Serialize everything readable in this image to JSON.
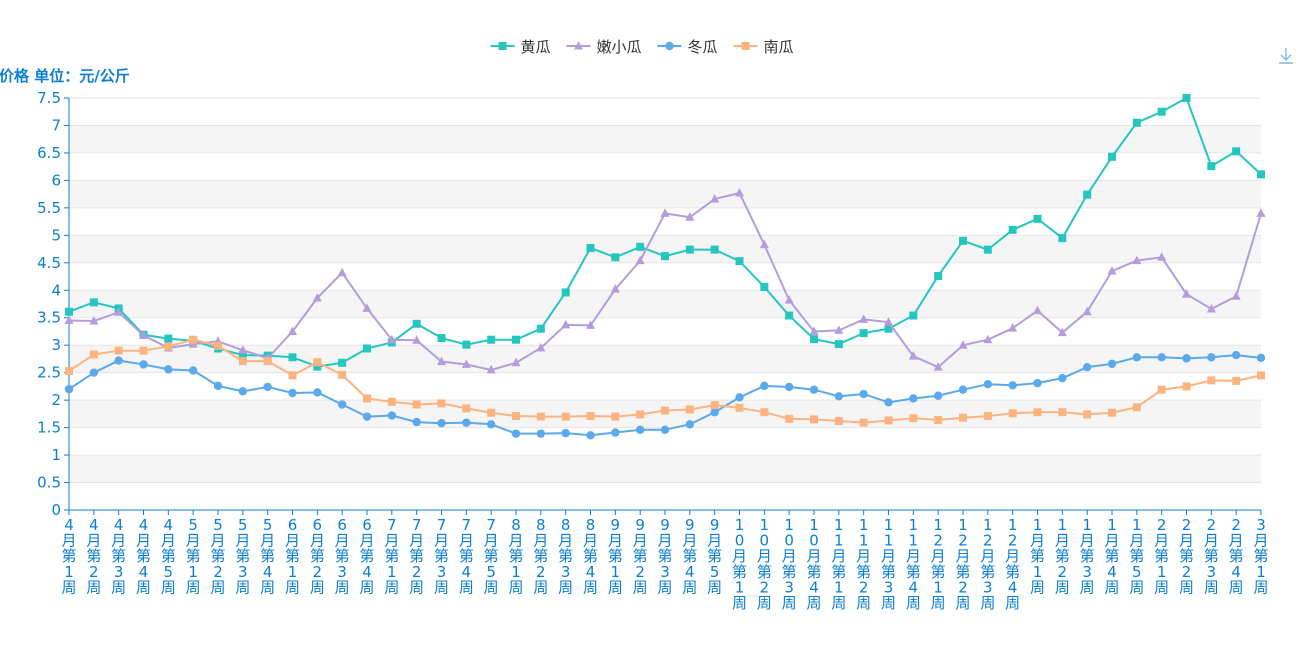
{
  "colors": {
    "axis": "#0b7fd1",
    "band": "#f5f5f5",
    "grid": "#e6e6e6",
    "series": [
      "#26c6c0",
      "#b39ddb",
      "#5aa9eb",
      "#fbb47f"
    ]
  },
  "icons": {
    "download": "download-icon"
  },
  "chart_data": {
    "type": "line",
    "title": "",
    "xlabel": "",
    "ylabel": "价格 单位：元/公斤",
    "ylim": [
      0,
      7.5
    ],
    "yticks": [
      "0",
      "0.5",
      "1",
      "1.5",
      "2",
      "2.5",
      "3",
      "3.5",
      "4",
      "4.5",
      "5",
      "5.5",
      "6",
      "6.5",
      "7",
      "7.5"
    ],
    "grid": true,
    "legend_position": "top-center",
    "categories": [
      "4月第1周",
      "4月第2周",
      "4月第3周",
      "4月第4周",
      "4月第5周",
      "5月第1周",
      "5月第2周",
      "5月第3周",
      "5月第4周",
      "6月第1周",
      "6月第2周",
      "6月第3周",
      "6月第4周",
      "7月第1周",
      "7月第2周",
      "7月第3周",
      "7月第4周",
      "7月第5周",
      "8月第1周",
      "8月第2周",
      "8月第3周",
      "8月第4周",
      "9月第1周",
      "9月第2周",
      "9月第3周",
      "9月第4周",
      "9月第5周",
      "10月第1周",
      "10月第2周",
      "10月第3周",
      "10月第4周",
      "11月第1周",
      "11月第2周",
      "11月第3周",
      "11月第4周",
      "12月第1周",
      "12月第2周",
      "12月第3周",
      "12月第4周",
      "1月第1周",
      "1月第2周",
      "1月第3周",
      "1月第4周",
      "1月第5周",
      "2月第1周",
      "2月第2周",
      "2月第3周",
      "2月第4周",
      "3月第1周"
    ],
    "series": [
      {
        "name": "黄瓜",
        "marker": "square",
        "values": [
          3.61,
          3.78,
          3.67,
          3.19,
          3.12,
          3.08,
          2.94,
          2.82,
          2.81,
          2.78,
          2.61,
          2.68,
          2.94,
          3.05,
          3.39,
          3.13,
          3.01,
          3.1,
          3.1,
          3.3,
          3.96,
          4.77,
          4.6,
          4.79,
          4.62,
          4.74,
          4.74,
          4.53,
          4.06,
          3.54,
          3.11,
          3.02,
          3.22,
          3.3,
          3.54,
          4.26,
          4.9,
          4.74,
          5.1,
          5.3,
          4.95,
          5.74,
          6.43,
          7.05,
          7.25,
          7.5,
          6.26,
          6.53,
          6.11
        ]
      },
      {
        "name": "嫩小瓜",
        "marker": "triangle",
        "values": [
          3.45,
          3.44,
          3.6,
          3.18,
          2.95,
          3.02,
          3.07,
          2.91,
          2.76,
          3.25,
          3.86,
          4.32,
          3.67,
          3.1,
          3.09,
          2.7,
          2.65,
          2.55,
          2.68,
          2.95,
          3.37,
          3.36,
          4.02,
          4.54,
          5.4,
          5.33,
          5.66,
          5.77,
          4.83,
          3.82,
          3.25,
          3.27,
          3.47,
          3.42,
          2.8,
          2.6,
          3.0,
          3.1,
          3.31,
          3.63,
          3.23,
          3.61,
          4.35,
          4.54,
          4.6,
          3.93,
          3.66,
          3.89,
          5.4
        ]
      },
      {
        "name": "冬瓜",
        "marker": "circle",
        "values": [
          2.2,
          2.5,
          2.72,
          2.65,
          2.56,
          2.54,
          2.26,
          2.16,
          2.24,
          2.13,
          2.14,
          1.92,
          1.7,
          1.72,
          1.6,
          1.58,
          1.59,
          1.56,
          1.39,
          1.39,
          1.4,
          1.36,
          1.41,
          1.46,
          1.46,
          1.56,
          1.78,
          2.05,
          2.26,
          2.24,
          2.19,
          2.07,
          2.11,
          1.96,
          2.03,
          2.08,
          2.19,
          2.29,
          2.27,
          2.31,
          2.4,
          2.6,
          2.66,
          2.78,
          2.78,
          2.76,
          2.78,
          2.82,
          2.77
        ]
      },
      {
        "name": "南瓜",
        "marker": "square",
        "values": [
          2.53,
          2.83,
          2.9,
          2.9,
          2.98,
          3.1,
          2.99,
          2.71,
          2.71,
          2.45,
          2.69,
          2.46,
          2.03,
          1.97,
          1.92,
          1.94,
          1.85,
          1.77,
          1.71,
          1.7,
          1.7,
          1.71,
          1.7,
          1.74,
          1.81,
          1.83,
          1.91,
          1.86,
          1.78,
          1.66,
          1.65,
          1.62,
          1.59,
          1.63,
          1.67,
          1.64,
          1.68,
          1.71,
          1.76,
          1.78,
          1.78,
          1.74,
          1.77,
          1.87,
          2.19,
          2.25,
          2.36,
          2.35,
          2.45
        ]
      }
    ]
  }
}
